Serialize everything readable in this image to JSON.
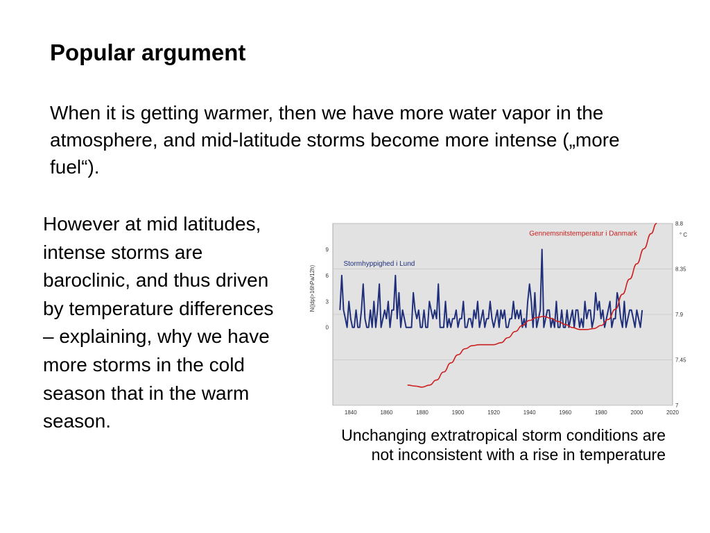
{
  "slide": {
    "title": "Popular argument",
    "intro": "When it is getting warmer, then we have more water vapor in the atmosphere, and mid-latitude storms become more intense („more fuel“).",
    "body": "However at mid latitudes, intense storms are baroclinic, and thus driven by temperature differences – explaining, why we have more storms in the cold season that in the warm season.",
    "caption": "Unchanging extratropical storm conditions are not inconsistent with a rise in temperature"
  },
  "colors": {
    "storm_series": "#1f2f7a",
    "temperature_series": "#cc1f1f",
    "plot_background": "#e2e2e2"
  },
  "chart_data": {
    "type": "line",
    "title": "",
    "xlabel": "",
    "xlim": [
      1830,
      2020
    ],
    "x_ticks": [
      1840,
      1860,
      1880,
      1900,
      1920,
      1940,
      1960,
      1980,
      2000,
      2020
    ],
    "left_axis": {
      "label": "N(|dp|>16hPa/12h)",
      "ticks": [
        0,
        3,
        6,
        9
      ],
      "ylim": [
        -9,
        12
      ]
    },
    "right_axis": {
      "unit": "° C",
      "ticks": [
        "7",
        "7.45",
        "7.9",
        "8.35",
        "8.8"
      ],
      "tick_values": [
        7,
        7.45,
        7.9,
        8.35,
        8.8
      ],
      "ylim": [
        7,
        8.8
      ]
    },
    "grid": "horizontal",
    "series": [
      {
        "name": "Stormhyppighed i Lund",
        "axis": "left",
        "x": [
          1834,
          1835,
          1836,
          1837,
          1838,
          1839,
          1840,
          1841,
          1842,
          1843,
          1844,
          1845,
          1846,
          1847,
          1848,
          1849,
          1850,
          1851,
          1852,
          1853,
          1854,
          1855,
          1856,
          1857,
          1858,
          1859,
          1860,
          1861,
          1862,
          1863,
          1864,
          1865,
          1866,
          1867,
          1868,
          1869,
          1870,
          1871,
          1872,
          1873,
          1874,
          1875,
          1876,
          1877,
          1878,
          1879,
          1880,
          1881,
          1882,
          1883,
          1884,
          1885,
          1886,
          1887,
          1888,
          1889,
          1890,
          1891,
          1892,
          1893,
          1894,
          1895,
          1896,
          1897,
          1898,
          1899,
          1900,
          1901,
          1902,
          1903,
          1904,
          1905,
          1906,
          1907,
          1908,
          1909,
          1910,
          1911,
          1912,
          1913,
          1914,
          1915,
          1916,
          1917,
          1918,
          1919,
          1920,
          1921,
          1922,
          1923,
          1924,
          1925,
          1926,
          1927,
          1928,
          1929,
          1930,
          1931,
          1932,
          1933,
          1934,
          1935,
          1936,
          1937,
          1938,
          1939,
          1940,
          1941,
          1942,
          1943,
          1944,
          1945,
          1946,
          1947,
          1948,
          1949,
          1950,
          1951,
          1952,
          1953,
          1954,
          1955,
          1956,
          1957,
          1958,
          1959,
          1960,
          1961,
          1962,
          1963,
          1964,
          1965,
          1966,
          1967,
          1968,
          1969,
          1970,
          1971,
          1972,
          1973,
          1974,
          1975,
          1976,
          1977,
          1978,
          1979,
          1980,
          1981,
          1982,
          1983,
          1984,
          1985,
          1986,
          1987,
          1988,
          1989,
          1990,
          1991,
          1992,
          1993,
          1994,
          1995,
          1996,
          1997,
          1998,
          1999,
          2000,
          2001,
          2002,
          2003
        ],
        "values": [
          2,
          6,
          2,
          1,
          0,
          3,
          1,
          0,
          0,
          2,
          0,
          0,
          2,
          5,
          1,
          0,
          0,
          2,
          0,
          3,
          0,
          2,
          5,
          0,
          1,
          2,
          1,
          3,
          0,
          2,
          2,
          6,
          1,
          4,
          0,
          2,
          1,
          0,
          0,
          0,
          0,
          4,
          2,
          1,
          2,
          0,
          0,
          2,
          0,
          0,
          3,
          2,
          1,
          2,
          1,
          5,
          0,
          0,
          0,
          3,
          0,
          1,
          0,
          1,
          1,
          2,
          0,
          1,
          1,
          3,
          0,
          0,
          1,
          1,
          0,
          2,
          1,
          3,
          0,
          1,
          2,
          0,
          1,
          1,
          3,
          1,
          0,
          1,
          2,
          0,
          2,
          1,
          2,
          0,
          0,
          1,
          1,
          3,
          1,
          2,
          1,
          2,
          0,
          1,
          0,
          3,
          5,
          3,
          0,
          4,
          0,
          1,
          2,
          9,
          0,
          1,
          2,
          2,
          0,
          1,
          0,
          3,
          0,
          0,
          2,
          0,
          0,
          2,
          0,
          1,
          2,
          0,
          2,
          2,
          0,
          1,
          0,
          3,
          1,
          2,
          2,
          0,
          1,
          4,
          2,
          3,
          1,
          2,
          0,
          1,
          2,
          3,
          0,
          1,
          1,
          4,
          3,
          1,
          0,
          3,
          0,
          1,
          2,
          2,
          1,
          0,
          2,
          1,
          0,
          2
        ]
      },
      {
        "name": "Gennemsnitstemperatur i Danmark",
        "axis": "right",
        "x": [
          1872,
          1876,
          1880,
          1884,
          1888,
          1892,
          1896,
          1900,
          1904,
          1908,
          1912,
          1916,
          1920,
          1924,
          1928,
          1932,
          1936,
          1940,
          1944,
          1948,
          1952,
          1956,
          1960,
          1964,
          1968,
          1972,
          1976,
          1980,
          1984,
          1988,
          1992,
          1996,
          2000,
          2004,
          2008,
          2011
        ],
        "values": [
          7.2,
          7.19,
          7.18,
          7.2,
          7.25,
          7.33,
          7.42,
          7.5,
          7.56,
          7.59,
          7.6,
          7.6,
          7.6,
          7.62,
          7.67,
          7.73,
          7.79,
          7.84,
          7.87,
          7.88,
          7.86,
          7.83,
          7.8,
          7.77,
          7.75,
          7.75,
          7.76,
          7.79,
          7.85,
          7.95,
          8.1,
          8.25,
          8.4,
          8.55,
          8.7,
          8.8
        ]
      }
    ]
  }
}
